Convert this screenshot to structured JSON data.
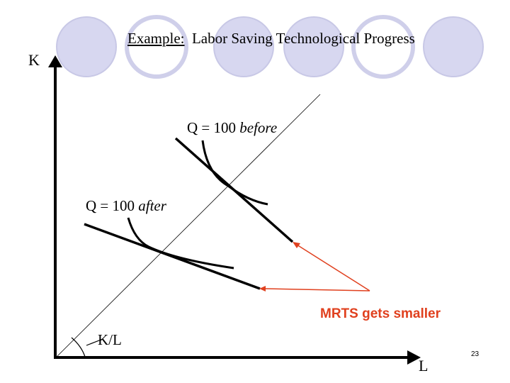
{
  "title": {
    "prefix": "Example:",
    "text": "Labor Saving Technological Progress"
  },
  "axes": {
    "y_label": "K",
    "x_label": "L"
  },
  "labels": {
    "q_before_text": "Q = 100 ",
    "q_before_emph": "before",
    "q_after_text": "Q = 100 ",
    "q_after_emph": "after",
    "kl_ray": "K/L",
    "mrts_note": "MRTS gets smaller"
  },
  "page_number": "23",
  "colors": {
    "decor_circle_fill": "#d7d7f0",
    "decor_circle_stroke": "#c8c8e6",
    "annotation": "#e0401e",
    "curves": "#000000"
  }
}
